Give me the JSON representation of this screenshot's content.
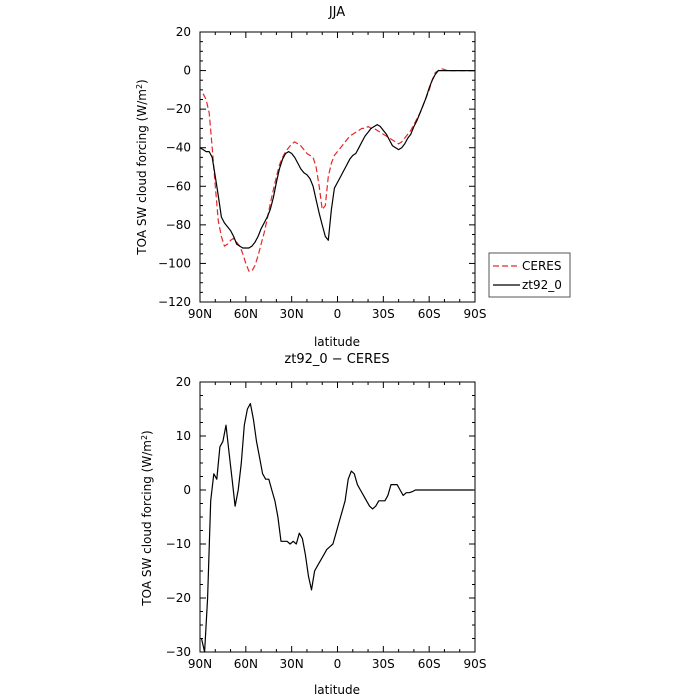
{
  "chart_data": [
    {
      "type": "line",
      "title": "JJA",
      "xlabel": "latitude",
      "ylabel_prefix": "TOA SW cloud forcing (W/m",
      "ylabel_sup": "2",
      "ylabel_suffix": ")",
      "xlim": [
        90,
        -90
      ],
      "ylim": [
        -120,
        20
      ],
      "xticks": [
        90,
        60,
        30,
        0,
        -30,
        -60,
        -90
      ],
      "xtick_labels": [
        "90N",
        "60N",
        "30N",
        "0",
        "30S",
        "60S",
        "90S"
      ],
      "yticks": [
        20,
        0,
        -20,
        -40,
        -60,
        -80,
        -100,
        -120
      ],
      "ytick_labels": [
        "20",
        "0",
        "−20",
        "−40",
        "−60",
        "−80",
        "−100",
        "−120"
      ],
      "legend_position": "right",
      "series": [
        {
          "name": "CERES",
          "color": "#e8262a",
          "dash": "6,3",
          "x": [
            88,
            86,
            84,
            82,
            80,
            78,
            76,
            74,
            72,
            70,
            68,
            66,
            64,
            62,
            60,
            58,
            56,
            54,
            52,
            50,
            48,
            46,
            44,
            42,
            40,
            38,
            36,
            34,
            32,
            30,
            28,
            26,
            24,
            22,
            20,
            18,
            16,
            14,
            12,
            10,
            8,
            6,
            4,
            2,
            0,
            -2,
            -4,
            -6,
            -8,
            -10,
            -12,
            -14,
            -16,
            -18,
            -20,
            -22,
            -24,
            -26,
            -28,
            -30,
            -32,
            -34,
            -36,
            -38,
            -40,
            -42,
            -44,
            -46,
            -48,
            -50,
            -52,
            -54,
            -56,
            -58,
            -60,
            -62,
            -64,
            -66,
            -68,
            -70,
            -72,
            -74,
            -76,
            -78,
            -80,
            -82,
            -84,
            -86,
            -88,
            -90
          ],
          "y": [
            -12,
            -15,
            -22,
            -40,
            -60,
            -78,
            -86,
            -91,
            -90,
            -88,
            -87,
            -89,
            -91,
            -95,
            -100,
            -104,
            -104,
            -101,
            -96,
            -90,
            -84,
            -77,
            -69,
            -62,
            -55,
            -49,
            -45,
            -42,
            -40,
            -38,
            -37,
            -38,
            -39,
            -41,
            -43,
            -44,
            -45,
            -50,
            -60,
            -72,
            -70,
            -55,
            -48,
            -44,
            -42,
            -40,
            -38,
            -36,
            -34,
            -33,
            -32,
            -31,
            -30,
            -30,
            -29,
            -30,
            -30,
            -31,
            -32,
            -33,
            -34,
            -35,
            -36,
            -37,
            -38,
            -37,
            -35,
            -33,
            -31,
            -28,
            -25,
            -22,
            -18,
            -14,
            -10,
            -5,
            -1,
            0,
            1,
            0.5,
            0,
            0,
            0,
            0,
            0,
            0,
            0,
            0,
            0,
            0
          ]
        },
        {
          "name": "zt92_0",
          "color": "#000000",
          "dash": "",
          "x": [
            90,
            88,
            86,
            84,
            82,
            80,
            78,
            76,
            74,
            72,
            70,
            68,
            66,
            64,
            62,
            60,
            58,
            56,
            54,
            52,
            50,
            48,
            46,
            44,
            42,
            40,
            38,
            36,
            34,
            32,
            30,
            28,
            26,
            24,
            22,
            20,
            18,
            16,
            14,
            12,
            10,
            8,
            6,
            4,
            2,
            0,
            -2,
            -4,
            -6,
            -8,
            -10,
            -12,
            -14,
            -16,
            -18,
            -20,
            -22,
            -24,
            -26,
            -28,
            -30,
            -32,
            -34,
            -36,
            -38,
            -40,
            -42,
            -44,
            -46,
            -48,
            -50,
            -52,
            -54,
            -56,
            -58,
            -60,
            -62,
            -64,
            -66,
            -68,
            -70,
            -72,
            -74,
            -76,
            -78,
            -80,
            -82,
            -84,
            -86,
            -88,
            -90
          ],
          "y": [
            -40,
            -41,
            -42,
            -42,
            -45,
            -55,
            -65,
            -76,
            -79,
            -81,
            -83,
            -86,
            -90,
            -91,
            -92,
            -92,
            -92,
            -91,
            -89,
            -86,
            -82,
            -79,
            -76,
            -72,
            -66,
            -58,
            -51,
            -46,
            -43,
            -42,
            -43,
            -45,
            -48,
            -51,
            -53,
            -54,
            -56,
            -60,
            -67,
            -74,
            -80,
            -86,
            -88,
            -72,
            -61,
            -58,
            -55,
            -52,
            -49,
            -46,
            -44,
            -43,
            -40,
            -37,
            -34,
            -32,
            -30,
            -29,
            -28,
            -29,
            -31,
            -33,
            -36,
            -39,
            -40,
            -41,
            -40,
            -38,
            -35,
            -33,
            -29,
            -26,
            -22,
            -18,
            -14,
            -9,
            -5,
            -2,
            0,
            0,
            0,
            0,
            0,
            0,
            0,
            0,
            0,
            0,
            0,
            0,
            0
          ]
        }
      ]
    },
    {
      "type": "line",
      "title": "zt92_0 − CERES",
      "xlabel": "latitude",
      "ylabel_prefix": "TOA SW cloud forcing (W/m",
      "ylabel_sup": "2",
      "ylabel_suffix": ")",
      "xlim": [
        90,
        -90
      ],
      "ylim": [
        -30,
        20
      ],
      "xticks": [
        90,
        60,
        30,
        0,
        -30,
        -60,
        -90
      ],
      "xtick_labels": [
        "90N",
        "60N",
        "30N",
        "0",
        "30S",
        "60S",
        "90S"
      ],
      "yticks": [
        20,
        10,
        0,
        -10,
        -20,
        -30
      ],
      "ytick_labels": [
        "20",
        "10",
        "0",
        "−10",
        "−20",
        "−30"
      ],
      "series": [
        {
          "name": "",
          "color": "#000000",
          "dash": "",
          "x": [
            89,
            87,
            85,
            83,
            81,
            79,
            77,
            75,
            73,
            71,
            69,
            67,
            65,
            63,
            61,
            59,
            57,
            55,
            53,
            51,
            49,
            47,
            45,
            43,
            41,
            39,
            37,
            35,
            33,
            31,
            29,
            27,
            25,
            23,
            21,
            19,
            17,
            15,
            13,
            11,
            9,
            7,
            5,
            3,
            1,
            -1,
            -3,
            -5,
            -7,
            -9,
            -11,
            -13,
            -15,
            -17,
            -19,
            -21,
            -23,
            -25,
            -27,
            -29,
            -31,
            -33,
            -35,
            -37,
            -39,
            -41,
            -43,
            -45,
            -47,
            -49,
            -51,
            -53,
            -55,
            -57,
            -59,
            -61,
            -63,
            -65,
            -67,
            -69,
            -71,
            -73,
            -75,
            -77,
            -79,
            -81,
            -83,
            -85,
            -87,
            -89
          ],
          "y": [
            -27.5,
            -30,
            -20,
            -2,
            3,
            2,
            8,
            9,
            12,
            7,
            2,
            -3,
            0,
            5,
            12,
            15,
            16,
            13,
            9,
            6,
            3,
            2,
            2,
            0,
            -2,
            -5,
            -9.5,
            -9.5,
            -9.5,
            -10,
            -9.5,
            -10,
            -8,
            -9,
            -12,
            -16,
            -18.5,
            -15,
            -14,
            -13,
            -12,
            -11,
            -10.5,
            -10,
            -8,
            -6,
            -4,
            -2,
            2,
            3.5,
            3,
            1,
            0,
            -1,
            -2,
            -3,
            -3.5,
            -3,
            -2,
            -2,
            -2,
            -1,
            1,
            1,
            1,
            0,
            -1,
            -0.5,
            -0.5,
            -0.3,
            0,
            0,
            0,
            0,
            0,
            0,
            0,
            0,
            0,
            0,
            0,
            0,
            0,
            0,
            0,
            0,
            0,
            0,
            0,
            0
          ]
        }
      ]
    }
  ]
}
